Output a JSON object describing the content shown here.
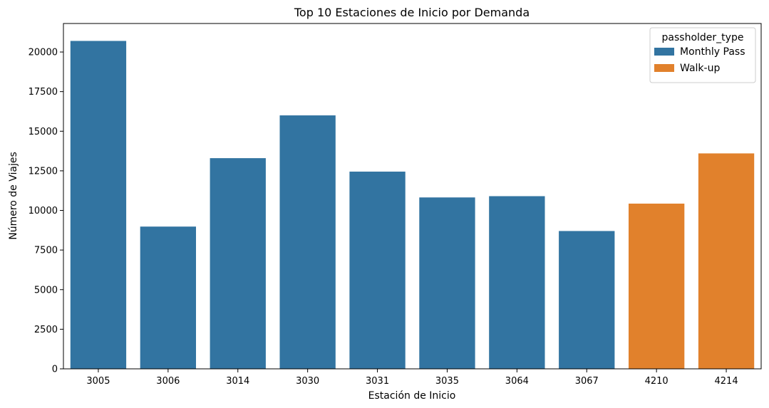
{
  "chart_data": {
    "type": "bar",
    "title": "Top 10 Estaciones de Inicio por Demanda",
    "xlabel": "Estación de Inicio",
    "ylabel": "Número de Viajes",
    "categories": [
      "3005",
      "3006",
      "3014",
      "3030",
      "3031",
      "3035",
      "3064",
      "3067",
      "4210",
      "4214"
    ],
    "values": [
      20700,
      8980,
      13300,
      16000,
      12450,
      10820,
      10900,
      8700,
      10430,
      13600
    ],
    "hue": [
      "Monthly Pass",
      "Monthly Pass",
      "Monthly Pass",
      "Monthly Pass",
      "Monthly Pass",
      "Monthly Pass",
      "Monthly Pass",
      "Monthly Pass",
      "Walk-up",
      "Walk-up"
    ],
    "ylim": [
      0,
      21800
    ],
    "yticks": [
      "0",
      "2500",
      "5000",
      "7500",
      "10000",
      "12500",
      "15000",
      "17500",
      "20000"
    ],
    "legend": {
      "title": "passholder_type",
      "placement": "upper right",
      "entries": [
        {
          "name": "Monthly Pass",
          "color": "#3274a1"
        },
        {
          "name": "Walk-up",
          "color": "#e1812c"
        }
      ]
    },
    "grid": false
  }
}
